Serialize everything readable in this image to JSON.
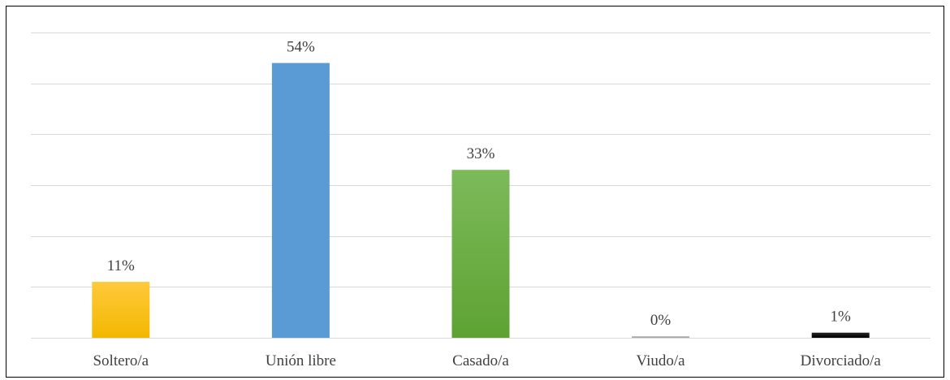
{
  "chart_data": {
    "type": "bar",
    "title": "",
    "xlabel": "",
    "ylabel": "",
    "ylim": [
      0,
      60
    ],
    "grid": true,
    "legend": "none",
    "categories": [
      "Soltero/a",
      "Unión libre",
      "Casado/a",
      "Viudo/a",
      "Divorciado/a"
    ],
    "values": [
      11,
      54,
      33,
      0,
      1
    ],
    "data_labels": [
      "11%",
      "54%",
      "33%",
      "0%",
      "1%"
    ],
    "colors": [
      {
        "top": "#ffc93c",
        "bottom": "#f2b800"
      },
      {
        "top": "#5b9bd5",
        "bottom": "#5b9bd5"
      },
      {
        "top": "#7cba5a",
        "bottom": "#5fa233"
      },
      {
        "top": "#c8c8c8",
        "bottom": "#9e9e9e"
      },
      {
        "top": "#262626",
        "bottom": "#000000"
      }
    ],
    "gridline_color": "#d9d9d9"
  }
}
